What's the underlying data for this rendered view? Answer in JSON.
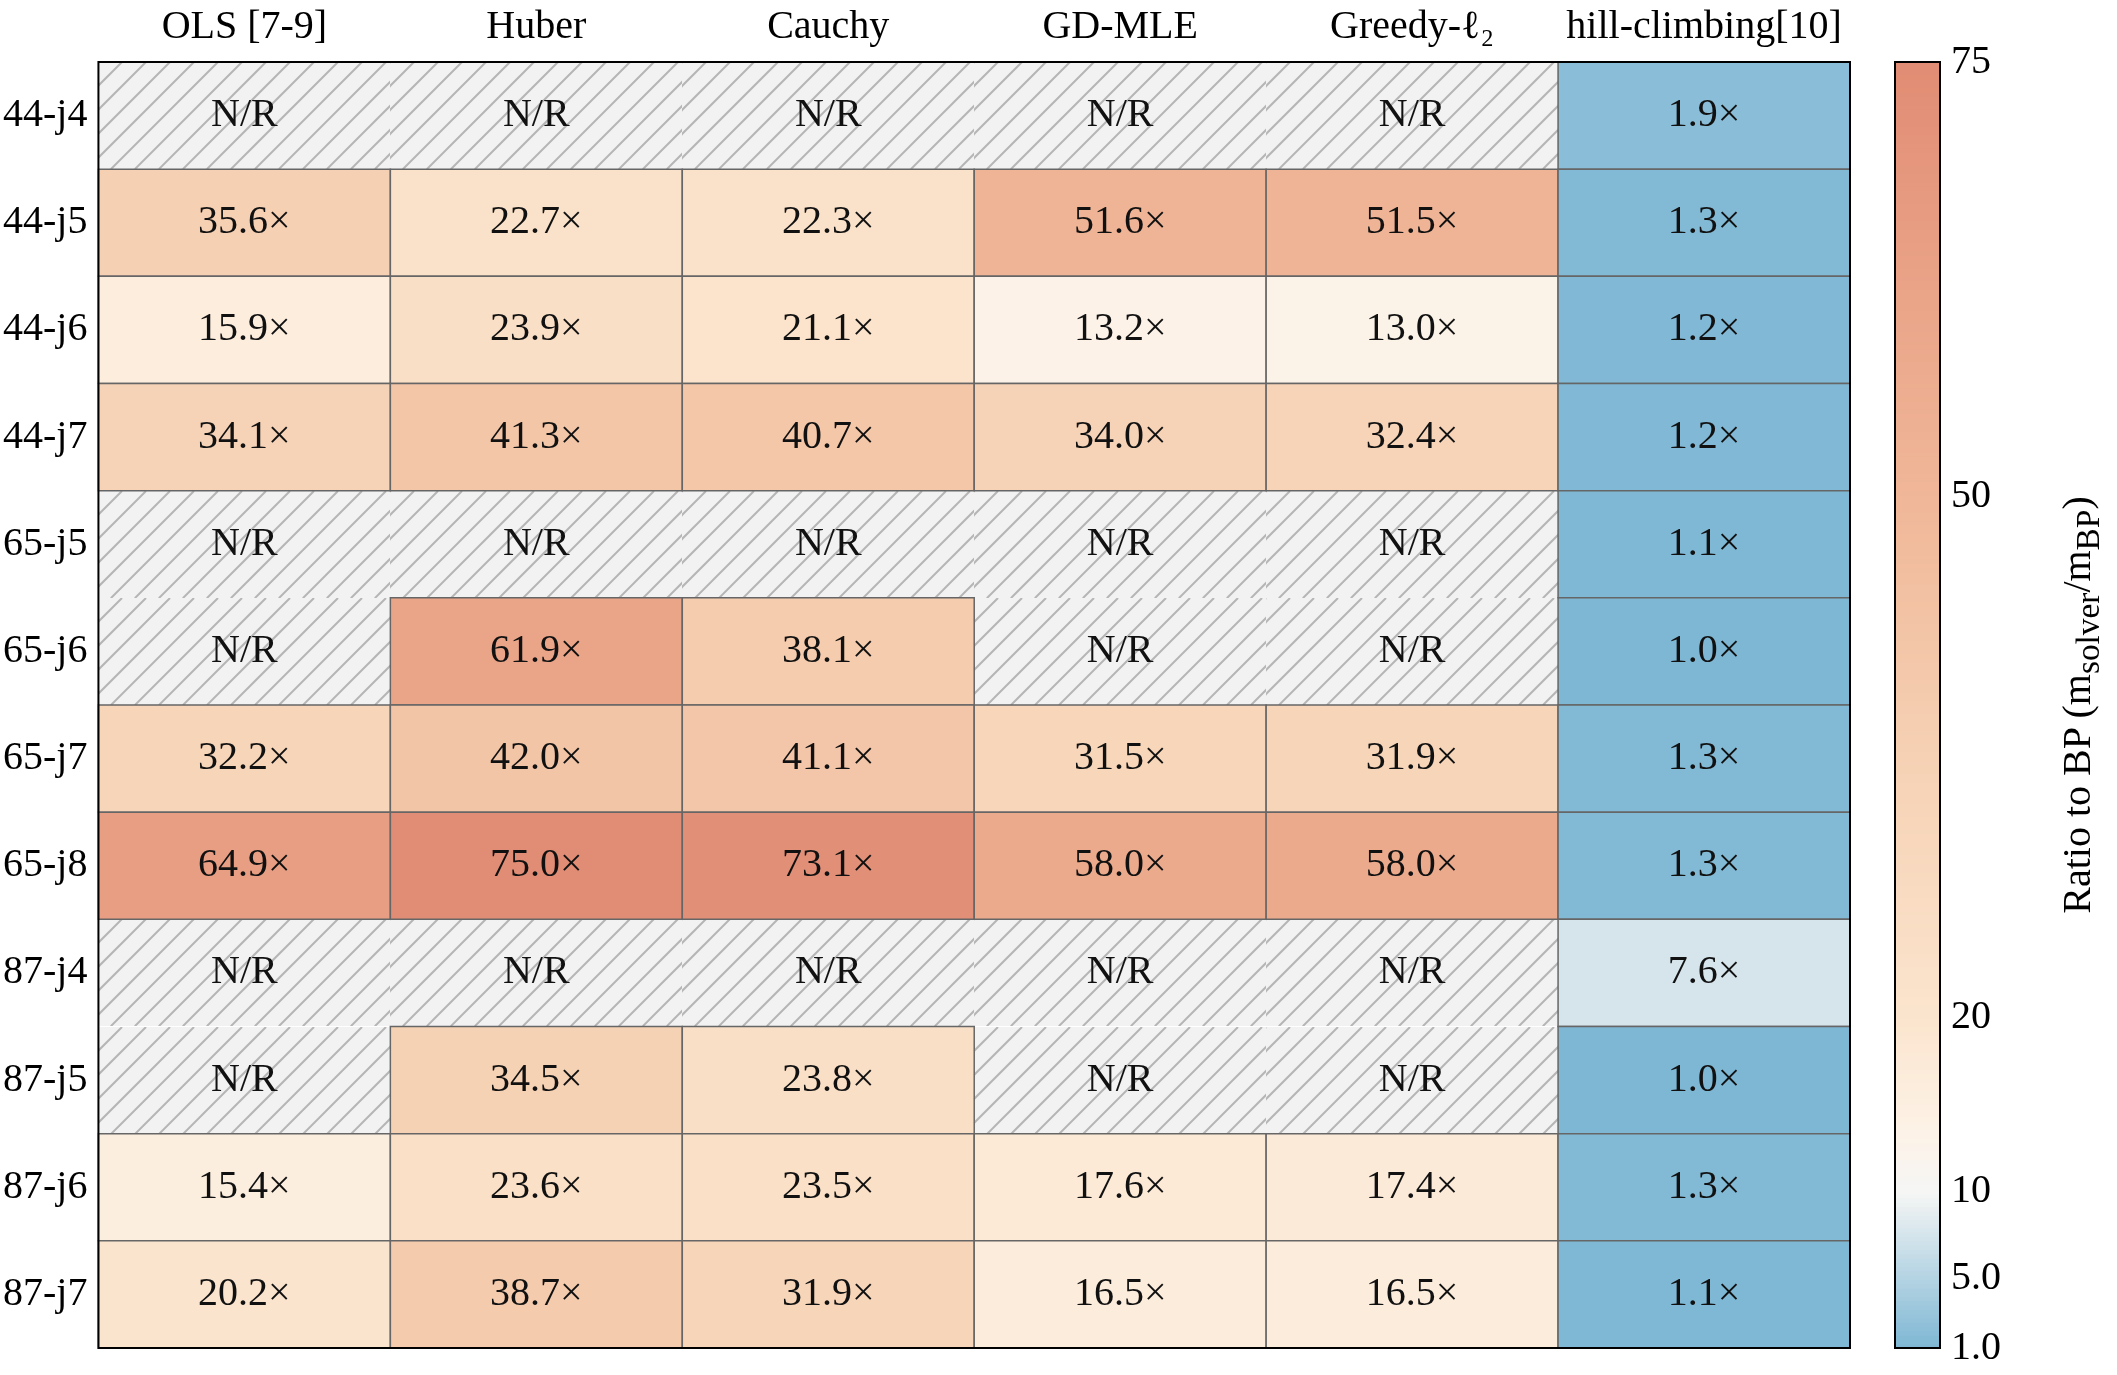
{
  "chart_data": {
    "type": "heatmap",
    "categories": [
      "OLS [7-9]",
      "Huber",
      "Cauchy",
      "GD-MLE",
      "Greedy-ℓ₂",
      "hill-climbing[10]"
    ],
    "y_categories": [
      "44-j4",
      "44-j5",
      "44-j6",
      "44-j7",
      "65-j5",
      "65-j6",
      "65-j7",
      "65-j8",
      "87-j4",
      "87-j5",
      "87-j6",
      "87-j7"
    ],
    "cells": [
      [
        null,
        null,
        null,
        null,
        null,
        1.9
      ],
      [
        35.6,
        22.7,
        22.3,
        51.6,
        51.5,
        1.3
      ],
      [
        15.9,
        23.9,
        21.1,
        13.2,
        13.0,
        1.2
      ],
      [
        34.1,
        41.3,
        40.7,
        34.0,
        32.4,
        1.2
      ],
      [
        null,
        null,
        null,
        null,
        null,
        1.1
      ],
      [
        null,
        61.9,
        38.1,
        null,
        null,
        1.0
      ],
      [
        32.2,
        42.0,
        41.1,
        31.5,
        31.9,
        1.3
      ],
      [
        64.9,
        75.0,
        73.1,
        58.0,
        58.0,
        1.3
      ],
      [
        null,
        null,
        null,
        null,
        null,
        7.6
      ],
      [
        null,
        34.5,
        23.8,
        null,
        null,
        1.0
      ],
      [
        15.4,
        23.6,
        23.5,
        17.6,
        17.4,
        1.3
      ],
      [
        20.2,
        38.7,
        31.9,
        16.5,
        16.5,
        1.1
      ]
    ],
    "cell_labels": [
      [
        "N/R",
        "N/R",
        "N/R",
        "N/R",
        "N/R",
        "1.9×"
      ],
      [
        "35.6×",
        "22.7×",
        "22.3×",
        "51.6×",
        "51.5×",
        "1.3×"
      ],
      [
        "15.9×",
        "23.9×",
        "21.1×",
        "13.2×",
        "13.0×",
        "1.2×"
      ],
      [
        "34.1×",
        "41.3×",
        "40.7×",
        "34.0×",
        "32.4×",
        "1.2×"
      ],
      [
        "N/R",
        "N/R",
        "N/R",
        "N/R",
        "N/R",
        "1.1×"
      ],
      [
        "N/R",
        "61.9×",
        "38.1×",
        "N/R",
        "N/R",
        "1.0×"
      ],
      [
        "32.2×",
        "42.0×",
        "41.1×",
        "31.5×",
        "31.9×",
        "1.3×"
      ],
      [
        "64.9×",
        "75.0×",
        "73.1×",
        "58.0×",
        "58.0×",
        "1.3×"
      ],
      [
        "N/R",
        "N/R",
        "N/R",
        "N/R",
        "N/R",
        "7.6×"
      ],
      [
        "N/R",
        "34.5×",
        "23.8×",
        "N/R",
        "N/R",
        "1.0×"
      ],
      [
        "15.4×",
        "23.6×",
        "23.5×",
        "17.6×",
        "17.4×",
        "1.3×"
      ],
      [
        "20.2×",
        "38.7×",
        "31.9×",
        "16.5×",
        "16.5×",
        "1.1×"
      ]
    ],
    "clim": [
      1,
      75
    ],
    "cticks": [
      {
        "value": 1,
        "label": "1.0"
      },
      {
        "value": 5,
        "label": "5.0"
      },
      10,
      20,
      50,
      75
    ],
    "clabel": "Ratio to BP (m$_{solver}$/m$_{BP}$)"
  }
}
